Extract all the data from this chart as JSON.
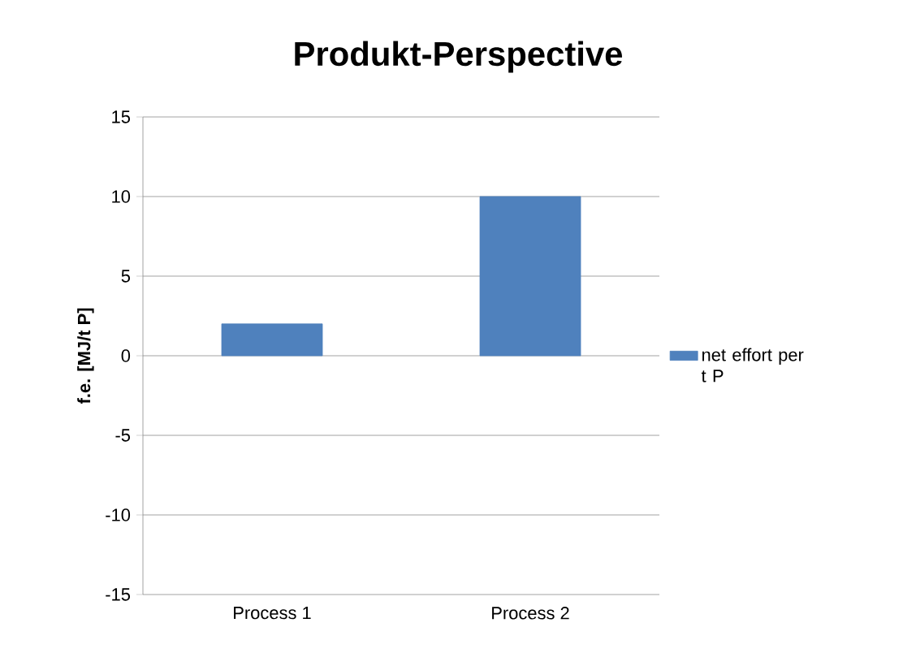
{
  "chart_data": {
    "type": "bar",
    "title": "Produkt-Perspective",
    "ylabel": "f.e. [MJ/t P]",
    "categories": [
      "Process 1",
      "Process 2"
    ],
    "series": [
      {
        "name": "net effort per t P",
        "color": "#4f81bd",
        "values": [
          2,
          10
        ]
      }
    ],
    "ylim": [
      -15,
      15
    ],
    "yticks": [
      -15,
      -10,
      -5,
      0,
      5,
      10,
      15
    ],
    "grid": "y",
    "legend": "right"
  }
}
